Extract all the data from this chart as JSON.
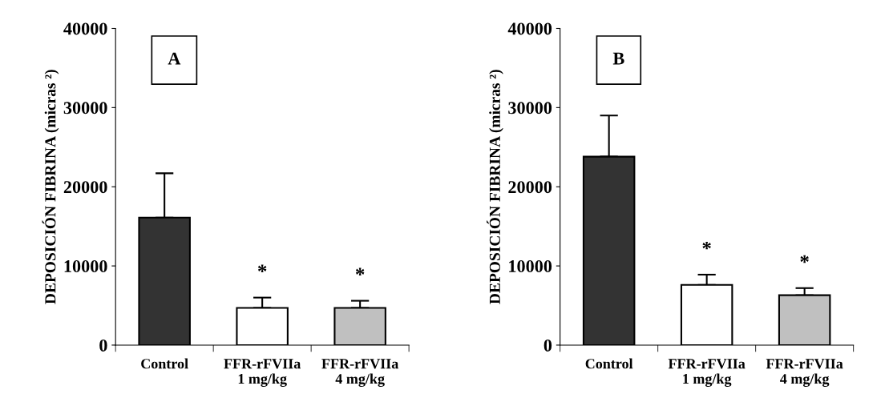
{
  "chart_data": [
    {
      "type": "bar",
      "ylabel": "DEPOSICIÓN FIBRINA (micras ²)",
      "categories": [
        "Control",
        "FFR-rFVIIa\n1 mg/kg",
        "FFR-rFVIIa\n4 mg/kg"
      ],
      "values": [
        16100,
        4700,
        4700
      ],
      "colors": [
        "#333333",
        "#ffffff",
        "#c0c0c0"
      ],
      "errors": [
        [
          16100,
          21700
        ],
        [
          4700,
          6000
        ],
        [
          4700,
          5600
        ]
      ],
      "ylim": [
        0,
        40000
      ],
      "yticks": [
        0,
        10000,
        20000,
        30000,
        40000
      ],
      "grid": false,
      "legend": false,
      "annotations": [
        "A",
        "*",
        "*"
      ]
    },
    {
      "type": "bar",
      "ylabel": "DEPOSICIÓN FIBRINA (micras ²)",
      "categories": [
        "Control",
        "FFR-rFVIIa\n1 mg/kg",
        "FFR-rFVIIa\n4 mg/kg"
      ],
      "values": [
        23800,
        7600,
        6300
      ],
      "colors": [
        "#333333",
        "#ffffff",
        "#c0c0c0"
      ],
      "errors": [
        [
          23800,
          29000
        ],
        [
          7600,
          8900
        ],
        [
          6300,
          7200
        ]
      ],
      "ylim": [
        0,
        40000
      ],
      "yticks": [
        0,
        10000,
        20000,
        30000,
        40000
      ],
      "grid": false,
      "legend": false,
      "annotations": [
        "B",
        "*",
        "*"
      ]
    }
  ]
}
